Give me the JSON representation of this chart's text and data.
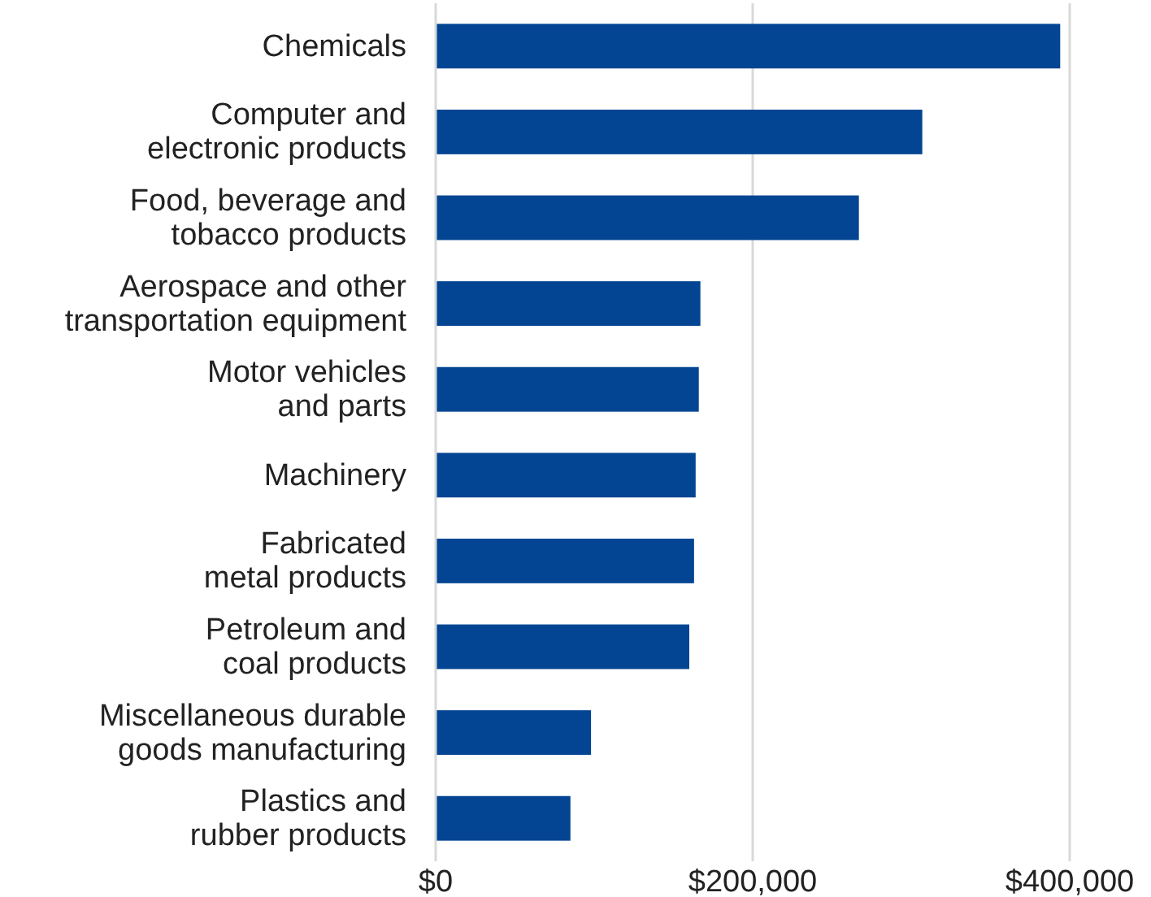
{
  "chart_data": {
    "type": "bar",
    "orientation": "horizontal",
    "categories": [
      "Chemicals",
      "Computer and electronic products",
      "Food, beverage and tobacco products",
      "Aerospace and other transportation equipment",
      "Motor vehicles and parts",
      "Machinery",
      "Fabricated metal products",
      "Petroleum and coal products",
      "Miscellaneous durable goods manufacturing",
      "Plastics and rubber products"
    ],
    "values": [
      394000,
      307000,
      267000,
      167000,
      166000,
      164000,
      163000,
      160000,
      98000,
      85000
    ],
    "color": "#034592",
    "xlim": [
      0,
      400000
    ],
    "xticks": [
      {
        "value": 0,
        "label": "$0"
      },
      {
        "value": 200000,
        "label": "$200,000"
      },
      {
        "value": 400000,
        "label": "$400,000"
      }
    ],
    "grid": "x"
  }
}
